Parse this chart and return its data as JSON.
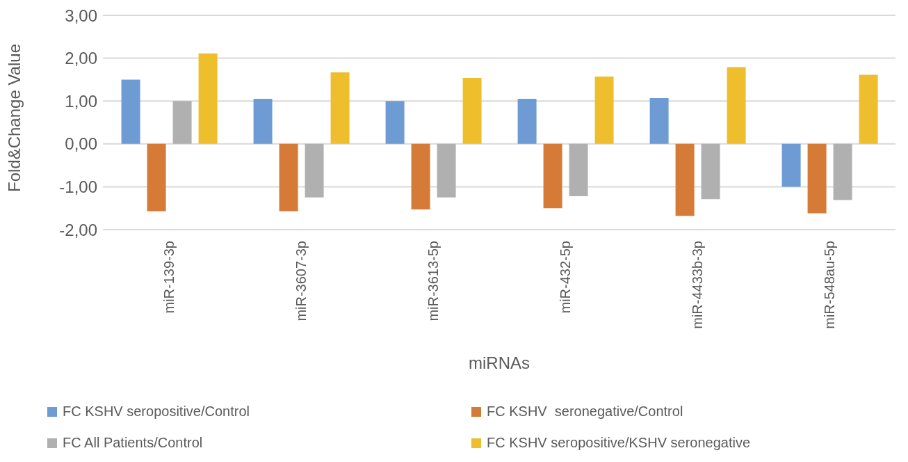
{
  "chart_data": {
    "type": "bar",
    "xlabel": "miRNAs",
    "ylabel": "Fold&Change Value",
    "categories": [
      "miR-139-3p",
      "miR-3607-3p",
      "miR-3613-5p",
      "miR-432-5p",
      "miR-4433b-3p",
      "miR-548au-5p"
    ],
    "series": [
      {
        "name": "FC KSHV seropositive/Control",
        "color": "#6e9bd4",
        "values": [
          1.5,
          1.05,
          1.0,
          1.05,
          1.07,
          -1.0
        ]
      },
      {
        "name": "FC KSHV  seronegative/Control",
        "color": "#d67a38",
        "values": [
          -1.57,
          -1.57,
          -1.53,
          -1.5,
          -1.68,
          -1.62
        ]
      },
      {
        "name": "FC All Patients/Control",
        "color": "#b0b0b0",
        "values": [
          1.0,
          -1.25,
          -1.25,
          -1.22,
          -1.29,
          -1.31
        ]
      },
      {
        "name": "FC KSHV seropositive/KSHV seronegative",
        "color": "#efbe2c",
        "values": [
          2.11,
          1.67,
          1.54,
          1.57,
          1.79,
          1.61
        ]
      }
    ],
    "ylim": [
      -2,
      3
    ],
    "yticks": [
      {
        "value": -2,
        "label": "-2,00"
      },
      {
        "value": -1,
        "label": "-1,00"
      },
      {
        "value": 0,
        "label": "0,00"
      },
      {
        "value": 1,
        "label": "1,00"
      },
      {
        "value": 2,
        "label": "2,00"
      },
      {
        "value": 3,
        "label": "3,00"
      }
    ],
    "grid": "y",
    "legend": "bottom"
  }
}
